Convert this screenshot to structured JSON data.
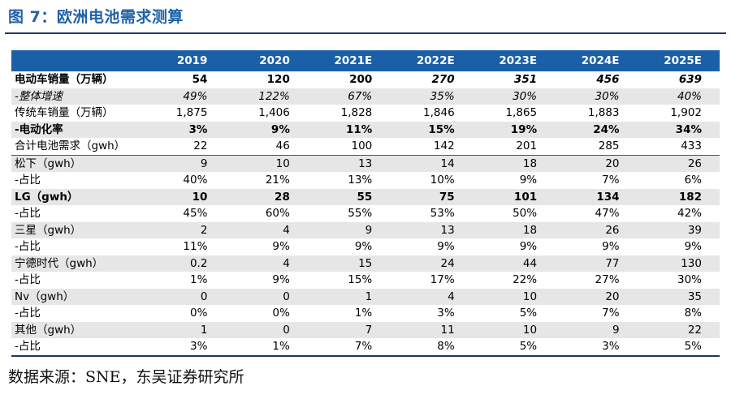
{
  "figure": {
    "title": "图 7：欧洲电池需求测算"
  },
  "table": {
    "header": [
      "",
      "2019",
      "2020",
      "2021E",
      "2022E",
      "2023E",
      "2024E",
      "2025E"
    ],
    "rows": [
      {
        "cells": [
          "电动车销量（万辆）",
          "54",
          "120",
          "200",
          "270",
          "351",
          "456",
          "639"
        ]
      },
      {
        "cells": [
          "-整体增速",
          "49%",
          "122%",
          "67%",
          "35%",
          "30%",
          "30%",
          "40%"
        ]
      },
      {
        "cells": [
          "传统车销量（万辆）",
          "1,875",
          "1,406",
          "1,828",
          "1,846",
          "1,865",
          "1,883",
          "1,902"
        ]
      },
      {
        "cells": [
          "-电动化率",
          "3%",
          "9%",
          "11%",
          "15%",
          "19%",
          "24%",
          "34%"
        ]
      },
      {
        "cells": [
          "合计电池需求（gwh）",
          "22",
          "46",
          "100",
          "142",
          "201",
          "285",
          "433"
        ]
      },
      {
        "cells": [
          "松下（gwh）",
          "9",
          "10",
          "13",
          "14",
          "18",
          "20",
          "26"
        ]
      },
      {
        "cells": [
          "-占比",
          "40%",
          "21%",
          "13%",
          "10%",
          "9%",
          "7%",
          "6%"
        ]
      },
      {
        "cells": [
          "LG（gwh）",
          "10",
          "28",
          "55",
          "75",
          "101",
          "134",
          "182"
        ]
      },
      {
        "cells": [
          "-占比",
          "45%",
          "60%",
          "55%",
          "53%",
          "50%",
          "47%",
          "42%"
        ]
      },
      {
        "cells": [
          "三星（gwh）",
          "2",
          "4",
          "9",
          "13",
          "18",
          "26",
          "39"
        ]
      },
      {
        "cells": [
          "-占比",
          "11%",
          "9%",
          "9%",
          "9%",
          "9%",
          "9%",
          "9%"
        ]
      },
      {
        "cells": [
          "宁德时代（gwh）",
          "0.2",
          "4",
          "15",
          "24",
          "44",
          "77",
          "130"
        ]
      },
      {
        "cells": [
          "-占比",
          "1%",
          "9%",
          "15%",
          "17%",
          "22%",
          "27%",
          "30%"
        ]
      },
      {
        "cells": [
          "Nv（gwh）",
          "0",
          "0",
          "1",
          "4",
          "10",
          "20",
          "35"
        ]
      },
      {
        "cells": [
          "-占比",
          "0%",
          "0%",
          "1%",
          "3%",
          "5%",
          "7%",
          "8%"
        ]
      },
      {
        "cells": [
          "其他（gwh）",
          "1",
          "0",
          "7",
          "11",
          "10",
          "9",
          "22"
        ]
      },
      {
        "cells": [
          "-占比",
          "3%",
          "1%",
          "7%",
          "8%",
          "5%",
          "3%",
          "5%"
        ]
      }
    ]
  },
  "source": {
    "text": "数据来源：SNE，东吴证券研究所"
  },
  "colors": {
    "header_bg": "#1a5fa8",
    "title": "#2162a8",
    "shade": "#e6e6e6"
  }
}
